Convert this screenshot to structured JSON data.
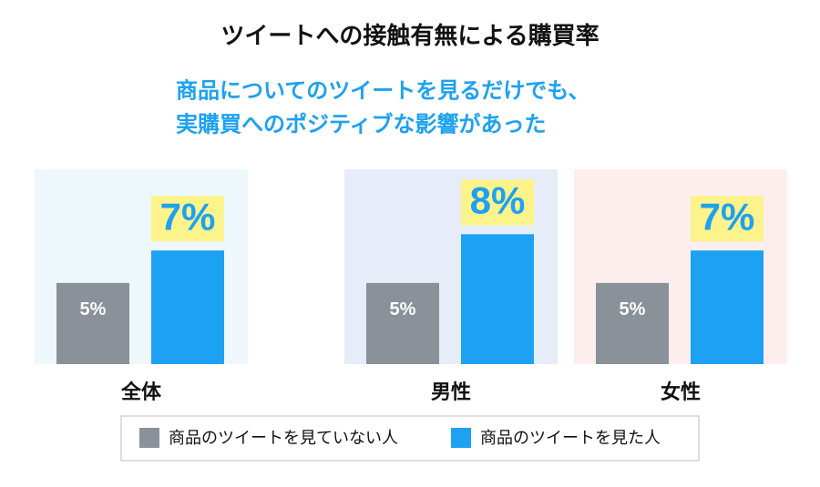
{
  "chart_data": {
    "type": "bar",
    "title": "ツイートへの接触有無による購買率",
    "subtitle": [
      "商品についてのツイートを見るだけでも、",
      "実購買へのポジティブな影響があった"
    ],
    "categories": [
      "全体",
      "男性",
      "女性"
    ],
    "panel_colors": [
      "#eef7fc",
      "#e6edf8",
      "#fdeeee"
    ],
    "series": [
      {
        "name": "商品のツイートを見ていない人",
        "color": "#8a9198",
        "values": [
          5,
          5,
          5
        ],
        "value_labels": [
          "5%",
          "5%",
          "5%"
        ]
      },
      {
        "name": "商品のツイートを見た人",
        "color": "#1da1f2",
        "values": [
          7,
          8,
          7
        ],
        "value_labels": [
          "7%",
          "8%",
          "7%"
        ]
      }
    ],
    "ylim": [
      0,
      12
    ]
  }
}
